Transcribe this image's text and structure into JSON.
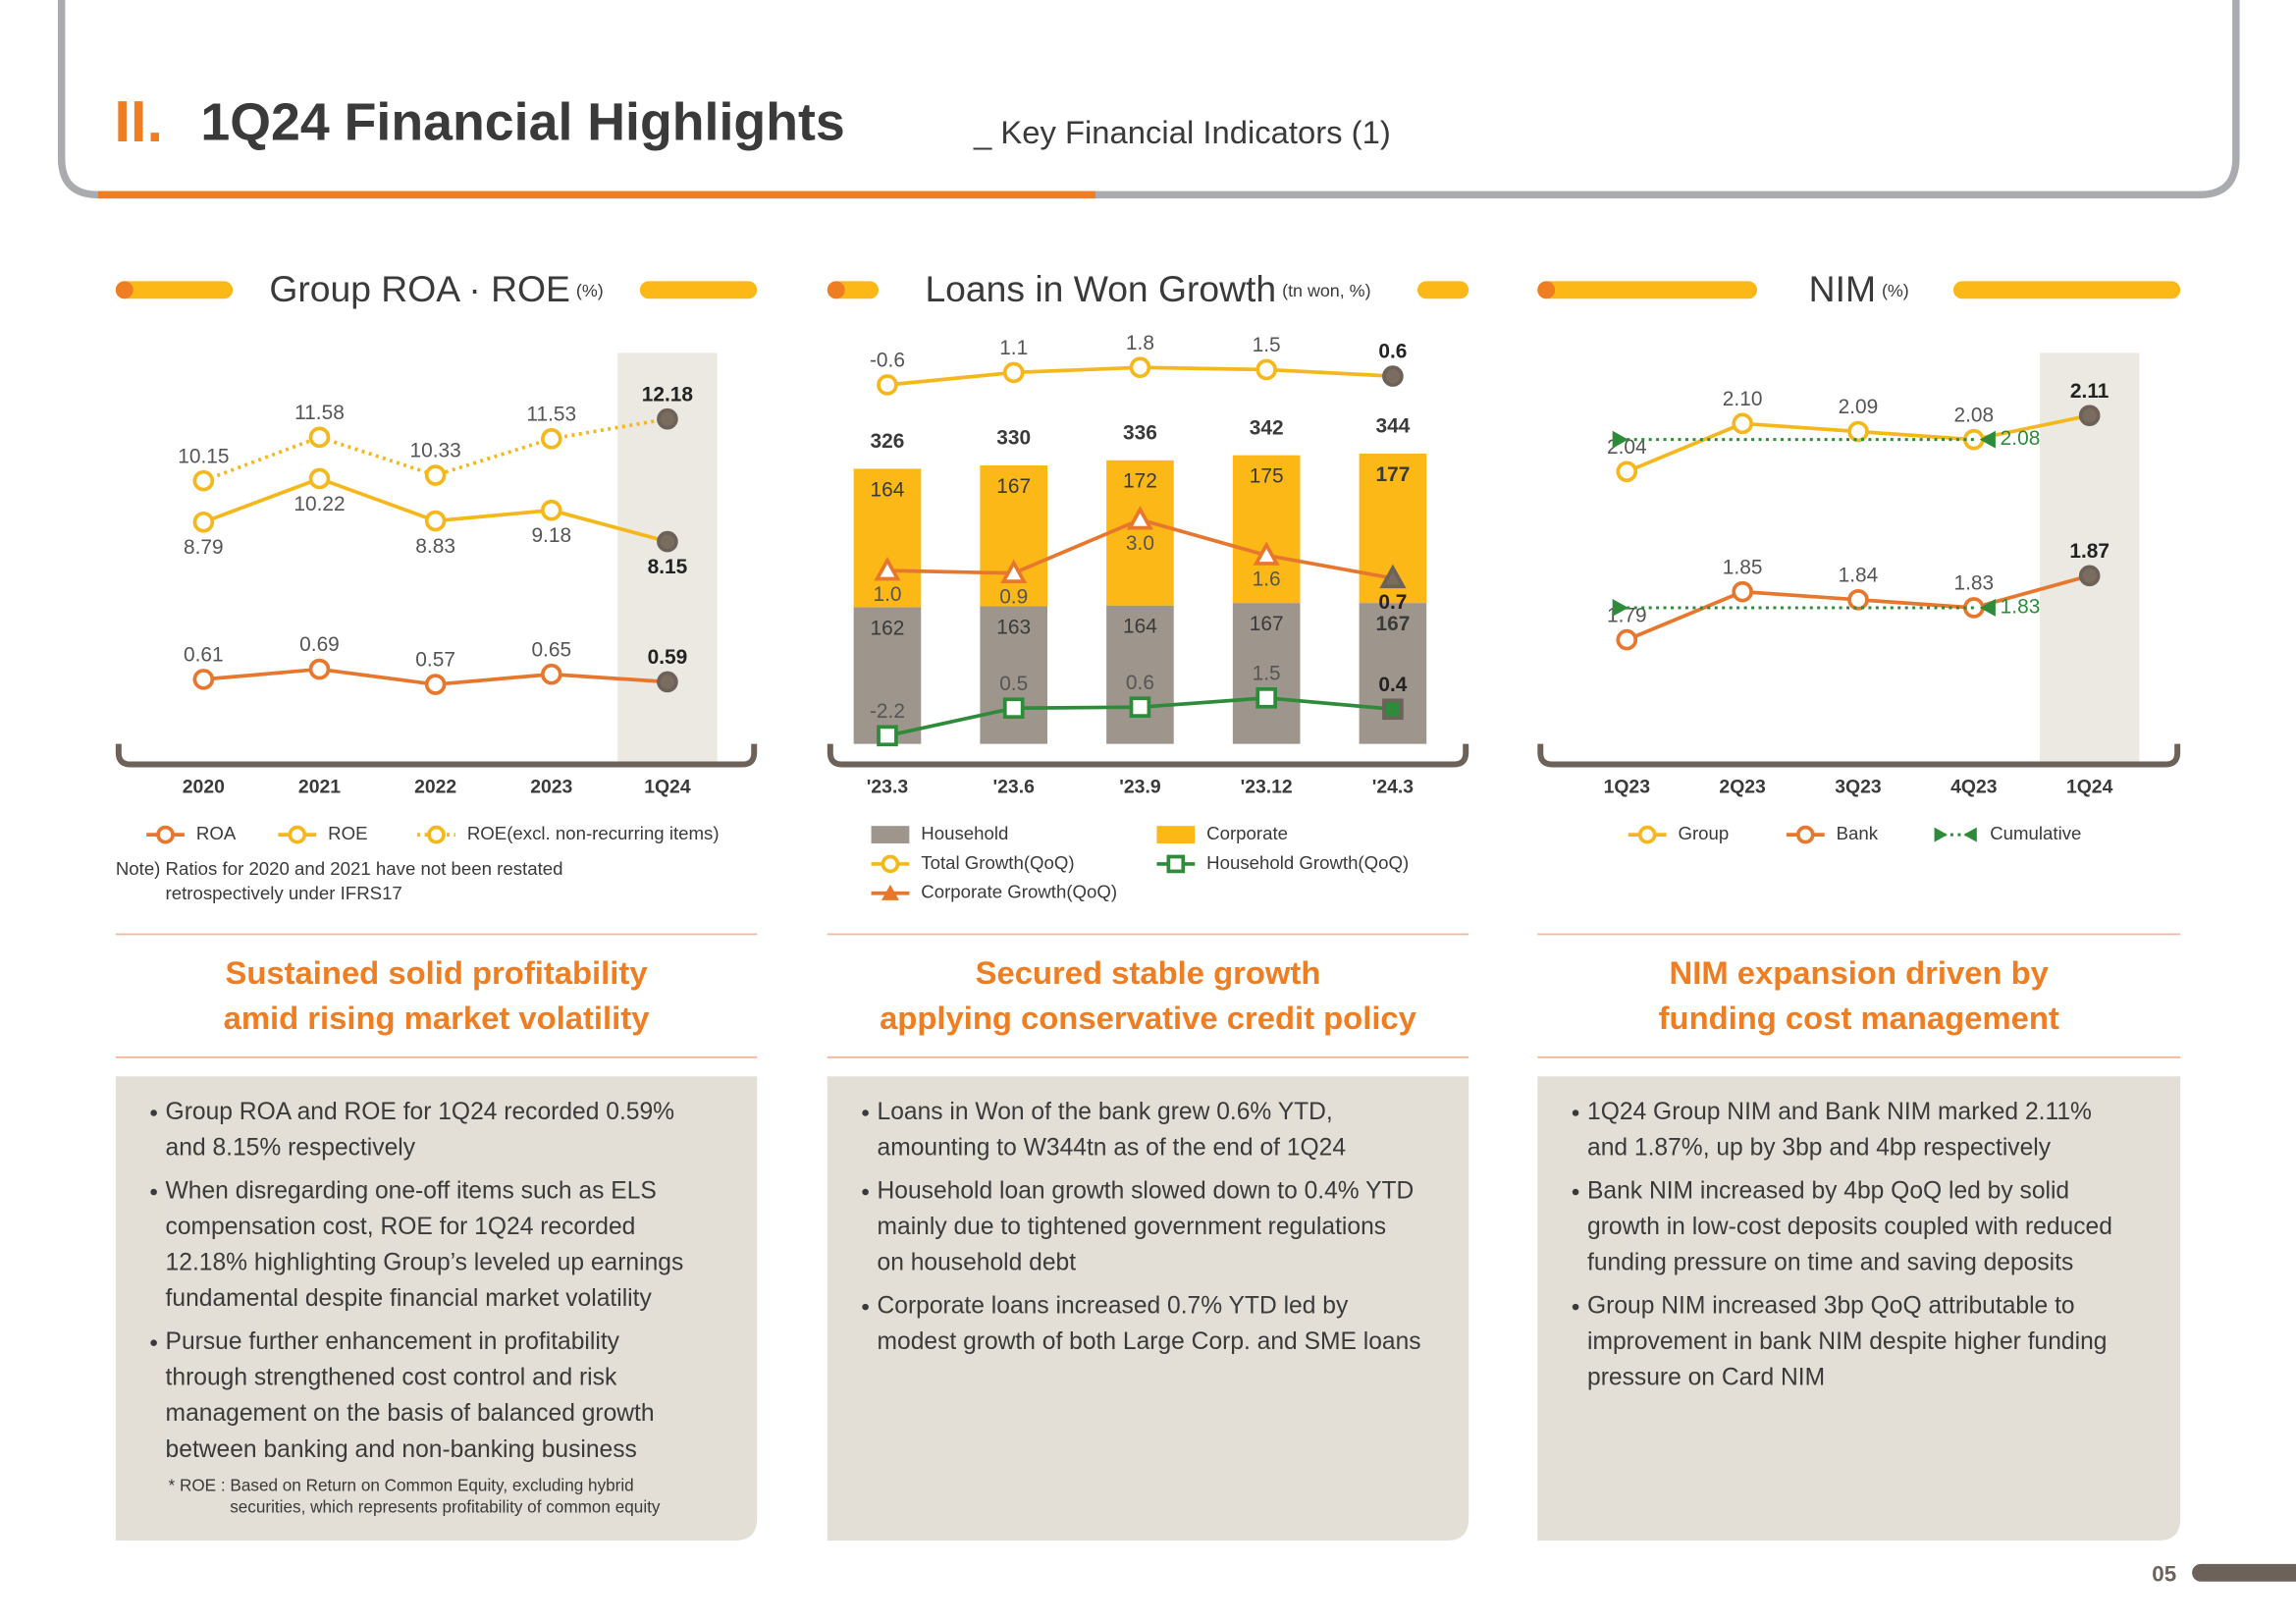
{
  "header": {
    "section": "II.",
    "title": "1Q24 Financial Highlights",
    "subtitle": "_ Key Financial Indicators (1)"
  },
  "chart_data": [
    {
      "type": "line",
      "title": "Group ROA · ROE",
      "unit": "(%)",
      "categories": [
        "2020",
        "2021",
        "2022",
        "2023",
        "1Q24"
      ],
      "highlight": "1Q24",
      "ylim": [
        1.5,
        14.4
      ],
      "y2lim": [
        0.1,
        3.2
      ],
      "series": [
        {
          "name": "ROA",
          "color": "#e8772e",
          "style": "solid",
          "axis": "y2",
          "values": [
            0.61,
            0.69,
            0.57,
            0.65,
            0.59
          ]
        },
        {
          "name": "ROE",
          "color": "#f5b81c",
          "style": "solid",
          "values": [
            8.79,
            10.22,
            8.83,
            9.18,
            8.15
          ]
        },
        {
          "name": "ROE(excl. non-recurring items)",
          "color": "#f5b81c",
          "style": "dotted",
          "values": [
            10.15,
            11.58,
            10.33,
            11.53,
            12.18
          ]
        }
      ],
      "note": [
        "Note) Ratios for 2020 and 2021 have not been restated",
        "retrospectively under IFRS17"
      ]
    },
    {
      "type": "bar-line",
      "title": "Loans in Won Growth",
      "unit": "(tn won, %)",
      "categories": [
        "'23.3",
        "'23.6",
        "'23.9",
        "'23.12",
        "'24.3"
      ],
      "ylim": [
        0,
        465
      ],
      "totals": [
        326,
        330,
        336,
        342,
        344
      ],
      "series": [
        {
          "name": "Household",
          "type": "bar",
          "color": "#9e968c",
          "values": [
            162,
            163,
            164,
            167,
            167
          ]
        },
        {
          "name": "Corporate",
          "type": "bar",
          "color": "#fbb817",
          "values": [
            164,
            167,
            172,
            175,
            177
          ]
        },
        {
          "name": "Total Growth(QoQ)",
          "type": "line",
          "marker": "circle",
          "color": "#f5b81c",
          "ylim": [
            -50,
            4
          ],
          "values": [
            -0.6,
            1.1,
            1.8,
            1.5,
            0.6
          ]
        },
        {
          "name": "Corporate Growth(QoQ)",
          "type": "line",
          "marker": "triangle",
          "color": "#e8772e",
          "ylim": [
            -5.8,
            9.6
          ],
          "values": [
            1.0,
            0.9,
            3.0,
            1.6,
            0.7
          ],
          "value_labels": [
            "1.0",
            "0.9",
            "3.0",
            "1.6",
            "0.7"
          ]
        },
        {
          "name": "Household Growth(QoQ)",
          "type": "line",
          "marker": "square",
          "color": "#2e8b3a",
          "ylim": [
            -3,
            35.4
          ],
          "values": [
            -2.2,
            0.5,
            0.6,
            1.5,
            0.4
          ]
        }
      ]
    },
    {
      "type": "line",
      "title": "NIM",
      "unit": "(%)",
      "categories": [
        "1Q23",
        "2Q23",
        "3Q23",
        "4Q23",
        "1Q24"
      ],
      "highlight": "1Q24",
      "series": [
        {
          "name": "Group",
          "color": "#f5b81c",
          "style": "solid",
          "ylim": [
            1.7,
            2.19
          ],
          "values": [
            2.04,
            2.1,
            2.09,
            2.08,
            2.11
          ],
          "value_labels": [
            "2.04",
            "2.10",
            "2.09",
            "2.08",
            "2.11"
          ]
        },
        {
          "name": "Bank",
          "color": "#e8772e",
          "style": "solid",
          "ylim": [
            1.66,
            2.15
          ],
          "values": [
            1.79,
            1.85,
            1.84,
            1.83,
            1.87
          ]
        }
      ],
      "cumulative": {
        "name": "Cumulative",
        "color": "#2e8b3a",
        "values": [
          2.08,
          1.83
        ]
      }
    }
  ],
  "columns": [
    {
      "headline": [
        "Sustained solid profitability",
        "amid rising market volatility"
      ],
      "bullets": [
        [
          "Group ROA and ROE for 1Q24 recorded 0.59%",
          "and 8.15% respectively"
        ],
        [
          "When disregarding one-off items such as ELS",
          "compensation cost,  ROE for 1Q24 recorded",
          "12.18% highlighting Group’s leveled up earnings",
          "fundamental despite financial market volatility"
        ],
        [
          "Pursue further enhancement in profitability",
          "through strengthened cost control and risk",
          "management on the basis of balanced growth",
          "between banking and non-banking business"
        ]
      ],
      "footnote": [
        "* ROE : Based on Return on Common Equity, excluding hybrid",
        "securities, which represents profitability of common equity"
      ]
    },
    {
      "headline": [
        "Secured stable growth",
        "applying conservative credit policy"
      ],
      "bullets": [
        [
          "Loans in Won of the bank grew 0.6% YTD,",
          "amounting to W344tn as of the end of 1Q24"
        ],
        [
          "Household loan growth slowed down to 0.4% YTD",
          "mainly due to tightened government regulations",
          "on household debt"
        ],
        [
          "Corporate loans increased 0.7% YTD led by",
          "modest growth of both Large Corp. and SME loans"
        ]
      ]
    },
    {
      "headline": [
        "NIM expansion driven by",
        "funding cost management"
      ],
      "bullets": [
        [
          "1Q24 Group NIM and Bank NIM marked 2.11%",
          "and 1.87%, up by 3bp and 4bp respectively"
        ],
        [
          "Bank NIM increased by 4bp QoQ led by solid",
          "growth in low-cost deposits coupled with reduced",
          "funding pressure on time and saving deposits"
        ],
        [
          "Group NIM increased  3bp QoQ attributable to",
          "improvement in bank NIM despite higher funding",
          "pressure on Card NIM"
        ]
      ]
    }
  ],
  "page": "05"
}
